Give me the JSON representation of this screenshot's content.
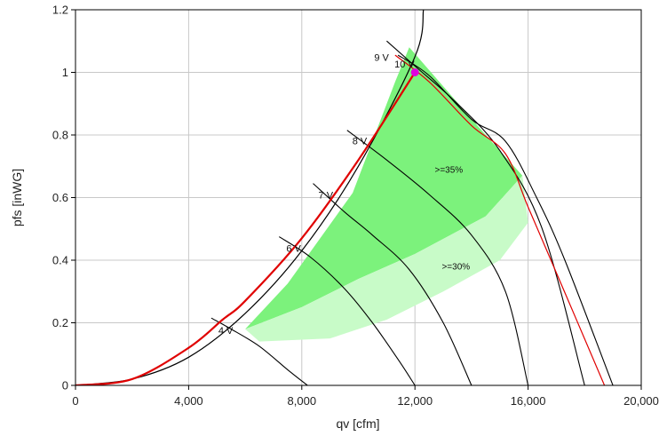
{
  "chart_data": {
    "type": "line",
    "xlabel": "qv [cfm]",
    "ylabel": "pfs [inWG]",
    "xlim": [
      0,
      20000
    ],
    "ylim": [
      0,
      1.2
    ],
    "x_ticks": [
      0,
      4000,
      8000,
      12000,
      16000,
      20000
    ],
    "x_tick_labels": [
      "0",
      "4,000",
      "8,000",
      "12,000",
      "16,000",
      "20,000"
    ],
    "y_ticks": [
      0,
      0.2,
      0.4,
      0.6,
      0.8,
      1.0,
      1.2
    ],
    "y_tick_labels": [
      "0",
      "0.2",
      "0.4",
      "0.6",
      "0.8",
      "1",
      "1.2"
    ],
    "grid": true,
    "colors": {
      "fan_curve": "#000000",
      "system_curve": "#000000",
      "operating_curve": "#e00000",
      "max_curve": "#e00000",
      "zone_35": "#7cf27c",
      "zone_30": "#c8fbc8",
      "operating_point": "#e000e0"
    },
    "system_curve": {
      "name": "",
      "x": [
        0,
        2000,
        4000,
        6000,
        8000,
        10000,
        12000,
        12300
      ],
      "y": [
        0,
        0.02,
        0.09,
        0.23,
        0.43,
        0.7,
        1.05,
        1.2
      ]
    },
    "operating_curve": {
      "name": "",
      "x": [
        0,
        2000,
        4000,
        5200,
        6000,
        8000,
        10000,
        12000
      ],
      "y": [
        0,
        0.02,
        0.12,
        0.21,
        0.27,
        0.47,
        0.72,
        1.0
      ]
    },
    "zones": [
      {
        "label": ">=35%",
        "polygon": [
          [
            6000,
            0.18
          ],
          [
            7500,
            0.325
          ],
          [
            9800,
            0.615
          ],
          [
            11300,
            0.97
          ],
          [
            11800,
            1.08
          ],
          [
            14500,
            0.8
          ],
          [
            15800,
            0.67
          ],
          [
            14500,
            0.54
          ],
          [
            12000,
            0.42
          ],
          [
            10000,
            0.34
          ],
          [
            8000,
            0.25
          ]
        ]
      },
      {
        "label": ">=30%",
        "polygon": [
          [
            6000,
            0.18
          ],
          [
            8000,
            0.25
          ],
          [
            10000,
            0.34
          ],
          [
            12000,
            0.42
          ],
          [
            14500,
            0.54
          ],
          [
            15800,
            0.67
          ],
          [
            16000,
            0.52
          ],
          [
            15000,
            0.4
          ],
          [
            13000,
            0.3
          ],
          [
            11000,
            0.21
          ],
          [
            9000,
            0.15
          ],
          [
            6500,
            0.14
          ]
        ]
      }
    ],
    "speed_curves": [
      {
        "label": "4 V",
        "x": [
          4800,
          5500,
          6500,
          7500,
          8200
        ],
        "y": [
          0.215,
          0.18,
          0.125,
          0.05,
          0.0
        ]
      },
      {
        "label": "6 V",
        "x": [
          7200,
          8300,
          9500,
          10500,
          11500,
          12000
        ],
        "y": [
          0.475,
          0.41,
          0.31,
          0.2,
          0.07,
          0.0
        ]
      },
      {
        "label": "7 V",
        "x": [
          8400,
          9500,
          10500,
          11800,
          13000,
          14000
        ],
        "y": [
          0.645,
          0.555,
          0.48,
          0.37,
          0.2,
          0.0
        ]
      },
      {
        "label": "8 V",
        "x": [
          9600,
          11000,
          12500,
          14000,
          15200,
          16000
        ],
        "y": [
          0.815,
          0.72,
          0.61,
          0.48,
          0.3,
          0.0
        ]
      },
      {
        "label": "9 V",
        "x": [
          11000,
          12000,
          13500,
          15000,
          16500,
          18000
        ],
        "y": [
          1.1,
          1.02,
          0.9,
          0.75,
          0.5,
          0.0
        ]
      },
      {
        "label": "10 V",
        "x": [
          11400,
          12500,
          14000,
          15200,
          16300,
          17300,
          19000
        ],
        "y": [
          1.055,
          0.99,
          0.85,
          0.78,
          0.6,
          0.4,
          0.0
        ]
      }
    ],
    "max_curve": {
      "name": "",
      "x": [
        11300,
        12500,
        14000,
        15200,
        16000,
        17000,
        18700
      ],
      "y": [
        1.055,
        0.97,
        0.83,
        0.74,
        0.57,
        0.36,
        0.0
      ]
    },
    "operating_point": {
      "x": 12000,
      "y": 1.0
    },
    "zone_labels": [
      {
        "text": ">=35%",
        "x": 12700,
        "y": 0.68
      },
      {
        "text": ">=30%",
        "x": 12950,
        "y": 0.37
      }
    ]
  }
}
